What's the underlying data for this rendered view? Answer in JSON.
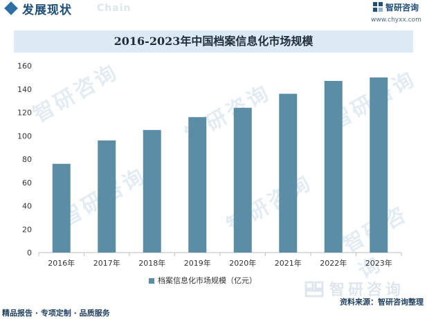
{
  "header": {
    "section_title": "发展现状",
    "section_en": "Chain",
    "brand_name": "智研咨询",
    "brand_url": "www.chyxx.com"
  },
  "watermark_text": "智研咨询",
  "footer": {
    "source": "资料来源：智研咨询整理",
    "tags": "精品报告 · 专项定制 · 品质服务",
    "brand_mark": "智研咨询"
  },
  "colors": {
    "bar": "#5b8ea5",
    "title_band": "#ddeaf5",
    "brand": "#1f4e79"
  },
  "chart_data": {
    "type": "bar",
    "title": "2016-2023年中国档案信息化市场规模",
    "categories": [
      "2016年",
      "2017年",
      "2018年",
      "2019年",
      "2020年",
      "2021年",
      "2022年",
      "2023年"
    ],
    "series": [
      {
        "name": "档案信息化市场规模（亿元）",
        "values": [
          76,
          96,
          105,
          116,
          124,
          136,
          147,
          150
        ]
      }
    ],
    "ylim": [
      0,
      160
    ],
    "yticks": [
      0,
      20,
      40,
      60,
      80,
      100,
      120,
      140,
      160
    ],
    "grid": false,
    "legend": "bottom-center"
  }
}
